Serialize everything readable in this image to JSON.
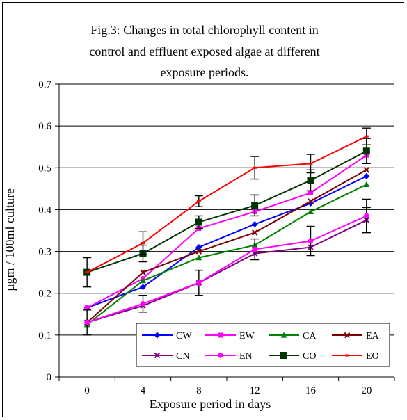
{
  "chart_data": {
    "type": "line",
    "title_lines": [
      "Fig.3: Changes in total chlorophyll content in",
      "control and effluent exposed algae at different",
      "exposure periods."
    ],
    "xlabel": "Exposure period in days",
    "ylabel": "µgm / 100ml culture",
    "categories": [
      "0",
      "4",
      "8",
      "12",
      "16",
      "20"
    ],
    "ylim": [
      0,
      0.7
    ],
    "yticks": [
      "0",
      "0.1",
      "0.2",
      "0.3",
      "0.4",
      "0.5",
      "0.6",
      "0.7"
    ],
    "grid": "horizontal",
    "legend_position": "bottom-right",
    "series": [
      {
        "name": "CW",
        "color": "#0000ff",
        "marker": "diamond",
        "values": [
          0.165,
          0.215,
          0.31,
          0.365,
          0.415,
          0.48
        ],
        "errors": [
          0,
          0,
          0,
          0,
          0,
          0
        ]
      },
      {
        "name": "EW",
        "color": "#ff00ff",
        "marker": "square",
        "values": [
          0.165,
          0.235,
          0.355,
          0.395,
          0.44,
          0.53
        ],
        "errors": [
          0,
          0,
          0,
          0,
          0,
          0
        ]
      },
      {
        "name": "CA",
        "color": "#008000",
        "marker": "triangle",
        "values": [
          0.125,
          0.23,
          0.285,
          0.315,
          0.395,
          0.46
        ],
        "errors": [
          0,
          0,
          0,
          0,
          0,
          0
        ]
      },
      {
        "name": "EA",
        "color": "#800000",
        "marker": "x",
        "values": [
          0.13,
          0.25,
          0.3,
          0.345,
          0.42,
          0.495
        ],
        "errors": [
          0,
          0,
          0,
          0,
          0,
          0
        ]
      },
      {
        "name": "CN",
        "color": "#800080",
        "marker": "x",
        "values": [
          0.13,
          0.17,
          0.225,
          0.295,
          0.31,
          0.375
        ],
        "errors": [
          0,
          0,
          0,
          0,
          0,
          0.03
        ]
      },
      {
        "name": "EN",
        "color": "#ff00ff",
        "marker": "circle",
        "values": [
          0.13,
          0.175,
          0.225,
          0.305,
          0.325,
          0.385
        ],
        "errors": [
          0.03,
          0.02,
          0.03,
          0.025,
          0.035,
          0.04
        ]
      },
      {
        "name": "CO",
        "color": "#003300",
        "marker": "square-big",
        "values": [
          0.25,
          0.295,
          0.37,
          0.41,
          0.47,
          0.54
        ],
        "errors": [
          0.035,
          0.02,
          0.015,
          0.025,
          0.025,
          0.03
        ]
      },
      {
        "name": "EO",
        "color": "#ff0000",
        "marker": "dash",
        "values": [
          0.25,
          0.32,
          0.42,
          0.5,
          0.51,
          0.575
        ],
        "errors": [
          0,
          0.027,
          0.013,
          0.027,
          0.022,
          0.02
        ]
      }
    ]
  }
}
